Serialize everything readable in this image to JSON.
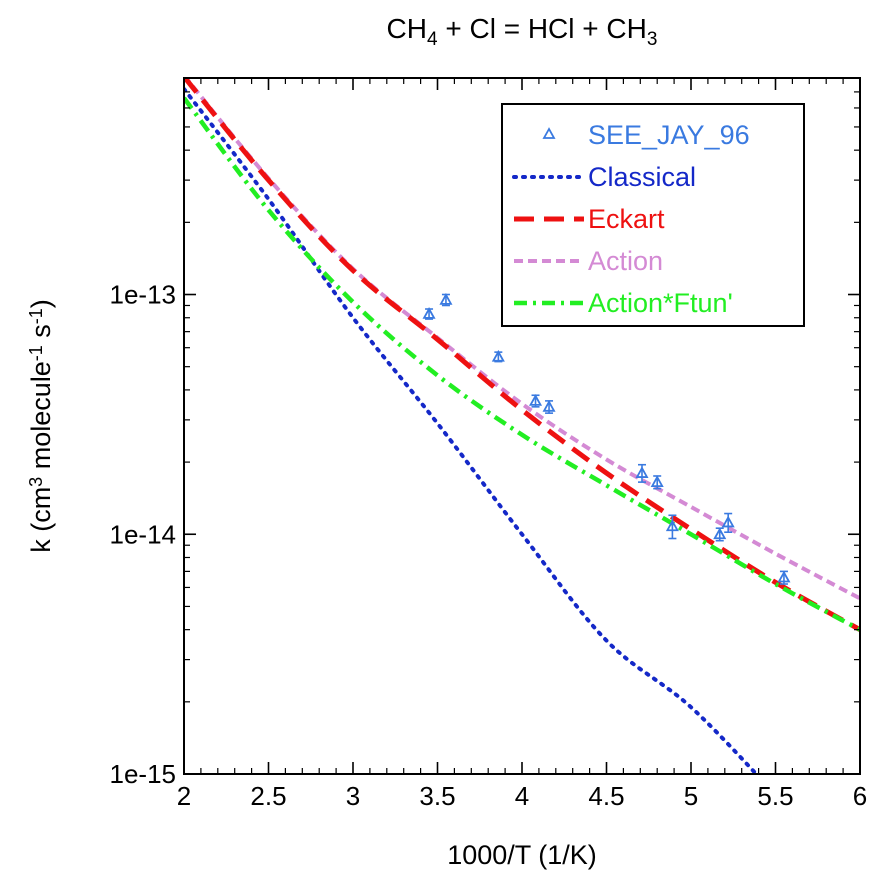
{
  "chart_data": {
    "type": "line",
    "title": {
      "parts": [
        {
          "text": "CH",
          "sub": false
        },
        {
          "text": "4",
          "sub": true
        },
        {
          "text": " + Cl = HCl + CH",
          "sub": false
        },
        {
          "text": "3",
          "sub": true
        }
      ]
    },
    "xlabel": "1000/T (1/K)",
    "ylabel": {
      "parts": [
        {
          "text": "k (cm",
          "sup": false
        },
        {
          "text": "3",
          "sup": true
        },
        {
          "text": " molecule",
          "sup": false
        },
        {
          "text": "-1",
          "sup": true
        },
        {
          "text": " s",
          "sup": false
        },
        {
          "text": "-1",
          "sup": true
        },
        {
          "text": ")",
          "sup": false
        }
      ]
    },
    "xlim": [
      2,
      6
    ],
    "ylim": [
      1e-15,
      8e-13
    ],
    "yscale": "log",
    "grid": false,
    "legend_position": "top-right",
    "x_ticks": [
      {
        "value": 2,
        "label": "2"
      },
      {
        "value": 2.5,
        "label": "2.5"
      },
      {
        "value": 3,
        "label": "3"
      },
      {
        "value": 3.5,
        "label": "3.5"
      },
      {
        "value": 4,
        "label": "4"
      },
      {
        "value": 4.5,
        "label": "4.5"
      },
      {
        "value": 5,
        "label": "5"
      },
      {
        "value": 5.5,
        "label": "5.5"
      },
      {
        "value": 6,
        "label": "6"
      }
    ],
    "y_ticks": [
      {
        "value": 1e-15,
        "label": "1e-15"
      },
      {
        "value": 1e-14,
        "label": "1e-14"
      },
      {
        "value": 1e-13,
        "label": "1e-13"
      }
    ],
    "series": [
      {
        "name": "SEE_JAY_96",
        "kind": "scatter",
        "marker": "triangle",
        "color": "#3a7ae0",
        "points": [
          {
            "x": 3.45,
            "y": 8.3e-14,
            "err": 4e-15
          },
          {
            "x": 3.55,
            "y": 9.5e-14,
            "err": 5e-15
          },
          {
            "x": 3.86,
            "y": 5.5e-14,
            "err": 2.5e-15
          },
          {
            "x": 4.08,
            "y": 3.6e-14,
            "err": 2e-15
          },
          {
            "x": 4.16,
            "y": 3.4e-14,
            "err": 2e-15
          },
          {
            "x": 4.71,
            "y": 1.8e-14,
            "err": 1.5e-15
          },
          {
            "x": 4.8,
            "y": 1.65e-14,
            "err": 1e-15
          },
          {
            "x": 4.89,
            "y": 1.08e-14,
            "err": 1.2e-15
          },
          {
            "x": 5.17,
            "y": 1e-14,
            "err": 6e-16
          },
          {
            "x": 5.22,
            "y": 1.12e-14,
            "err": 1e-15
          },
          {
            "x": 5.55,
            "y": 6.6e-15,
            "err": 4e-16
          }
        ]
      },
      {
        "name": "Classical",
        "kind": "line",
        "style": "dotted",
        "color": "#1428c8",
        "x": [
          2.0,
          2.5,
          3.0,
          3.5,
          4.0,
          4.5,
          5.0,
          5.5
        ],
        "y": [
          7.2e-13,
          2.5e-13,
          8e-14,
          2.9e-14,
          1e-14,
          3.6e-15,
          1.9e-15,
          8.2e-16
        ]
      },
      {
        "name": "Eckart",
        "kind": "line",
        "style": "dashed",
        "color": "#ee1111",
        "x": [
          2.0,
          2.5,
          3.0,
          3.5,
          4.0,
          4.5,
          5.0,
          5.5,
          6.0
        ],
        "y": [
          8.1e-13,
          3e-13,
          1.26e-13,
          6.5e-14,
          3.3e-14,
          1.8e-14,
          1.05e-14,
          6.3e-15,
          4e-15
        ]
      },
      {
        "name": "Action",
        "kind": "line",
        "style": "short-dashed",
        "color": "#d48ad4",
        "x": [
          2.0,
          2.5,
          3.0,
          3.5,
          4.0,
          4.5,
          5.0,
          5.5,
          6.0
        ],
        "y": [
          8.2e-13,
          3.05e-13,
          1.28e-13,
          6.6e-14,
          3.5e-14,
          2.05e-14,
          1.3e-14,
          8.3e-15,
          5.4e-15
        ]
      },
      {
        "name": "Action*Ftun'",
        "kind": "line",
        "style": "dash-dot",
        "color": "#22ee22",
        "x": [
          2.0,
          2.5,
          3.0,
          3.5,
          4.0,
          4.5,
          5.0,
          5.5,
          6.0
        ],
        "y": [
          6.6e-13,
          2.25e-13,
          9.3e-14,
          4.6e-14,
          2.6e-14,
          1.6e-14,
          1e-14,
          6.2e-15,
          4e-15
        ]
      }
    ]
  }
}
